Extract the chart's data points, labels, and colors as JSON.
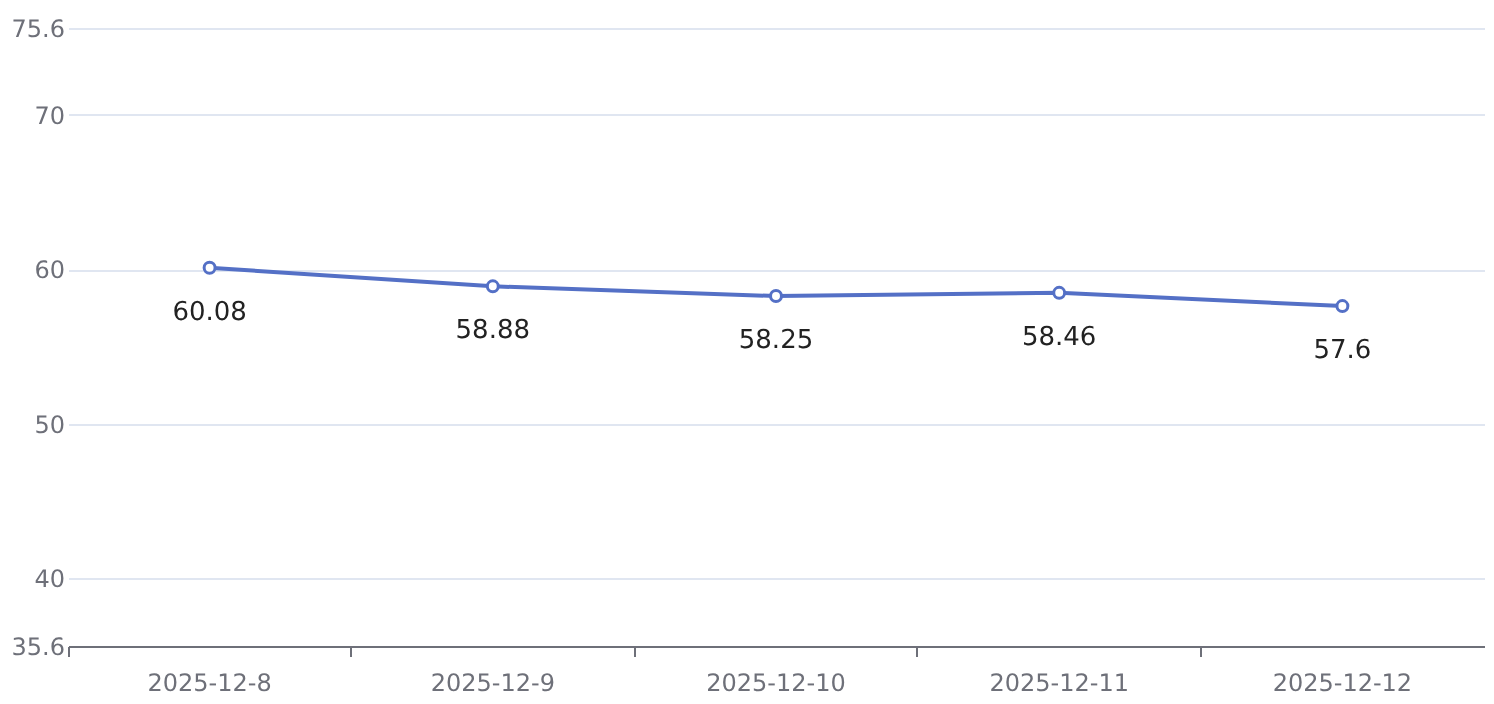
{
  "chart_data": {
    "type": "line",
    "categories": [
      "2025-12-8",
      "2025-12-9",
      "2025-12-10",
      "2025-12-11",
      "2025-12-12"
    ],
    "series": [
      {
        "color": "#5470c6",
        "values": [
          60.08,
          58.88,
          58.25,
          58.46,
          57.6
        ]
      }
    ],
    "ylim": [
      35.6,
      75.6
    ],
    "yticks": [
      35.6,
      40,
      50,
      60,
      70,
      75.6
    ],
    "grid": "y",
    "marker": "circle",
    "line_style": "solid",
    "data_labels": true
  }
}
